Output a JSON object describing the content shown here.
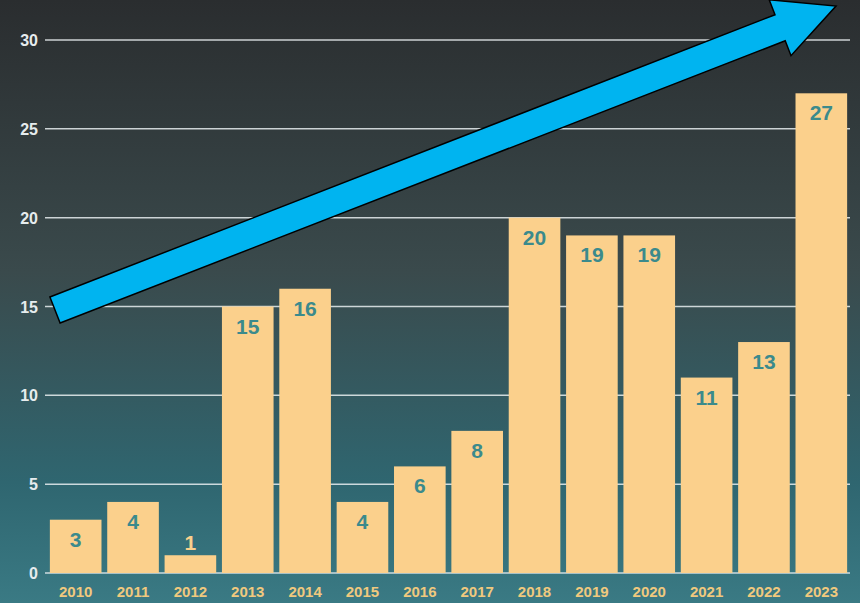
{
  "chart_data": {
    "type": "bar",
    "categories": [
      "2010",
      "2011",
      "2012",
      "2013",
      "2014",
      "2015",
      "2016",
      "2017",
      "2018",
      "2019",
      "2020",
      "2021",
      "2022",
      "2023"
    ],
    "values": [
      3,
      4,
      1,
      15,
      16,
      4,
      6,
      8,
      20,
      19,
      19,
      11,
      13,
      27
    ],
    "color": "#fbd08c",
    "ylim": [
      0,
      30
    ],
    "yticks": [
      0,
      5,
      10,
      15,
      20,
      25,
      30
    ],
    "grid": true,
    "data_labels": true
  }
}
